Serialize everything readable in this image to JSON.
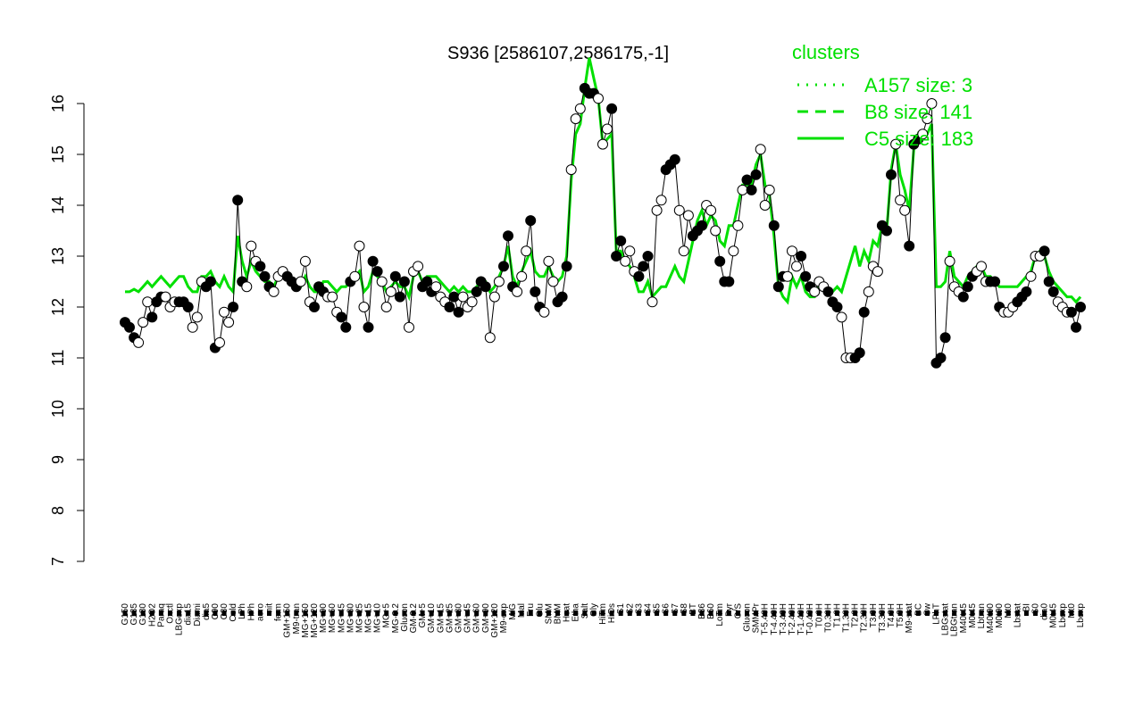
{
  "colors": {
    "green": "#00e000",
    "black": "#000000"
  },
  "chart_data": {
    "type": "line",
    "title": "S936 [2586107,2586175,-1]",
    "xlabel": "",
    "ylabel": "",
    "ylim": [
      7,
      16
    ],
    "yticks": [
      7,
      8,
      9,
      10,
      11,
      12,
      13,
      14,
      15,
      16
    ],
    "grid": false,
    "legend": {
      "title": "clusters",
      "placement": "top-right",
      "entries": [
        {
          "label": "A157 size: 3",
          "style": "dotted"
        },
        {
          "label": "B8 size: 141",
          "style": "dashed"
        },
        {
          "label": "C5 size: 183",
          "style": "solid"
        }
      ]
    },
    "x_tick_labels": [
      "G150",
      "G135",
      "G180",
      "H2O2",
      "Paraq",
      "Oxctl",
      "LBGexp",
      "dia15",
      "Diami",
      "dia5",
      "C90",
      "C30",
      "Cold",
      "LPh",
      "HPh",
      "aero",
      "nit",
      "ferm",
      "GM+150",
      "M9-tran",
      "MG+150",
      "MG+120",
      "MG+90",
      "MG+60",
      "MG+45",
      "MG+30",
      "MG+25",
      "MG+15",
      "MG+10",
      "MG+5",
      "MG-0.2",
      "Glucon",
      "GM-0.2",
      "GM+5",
      "GM+10",
      "GM+15",
      "GM+25",
      "GM+30",
      "GM+45",
      "GM+60",
      "GM+90",
      "GM+120",
      "M9-exp",
      "M/G",
      "Mal",
      "Fru",
      "Glu",
      "SMM",
      "BMM",
      "Heat",
      "Etha",
      "Salt",
      "Gly",
      "HiTm",
      "HiOs",
      "S1",
      "S2",
      "S3",
      "S4",
      "S5",
      "S6",
      "S7",
      "S8",
      "BT",
      "B36",
      "B60",
      "LoTm",
      "Pyr",
      "G/S",
      "Glucon",
      "SMMPr",
      "T-5.40H",
      "T-4.40H",
      "T-3.40H",
      "T-2.40H",
      "T-1.40H",
      "T-0.40H",
      "T0.0H",
      "T0.30H",
      "T1.0H",
      "T1.30H",
      "T2.0H",
      "T2.30H",
      "T3.0H",
      "T3.30H",
      "T4.0H",
      "T5.0H",
      "M9-stat",
      "BC",
      "Sw",
      "LPhT",
      "LBGstat",
      "LBGtran",
      "M40t45",
      "M0t45",
      "Lbtran",
      "M40t90",
      "M0t90",
      "Mt0",
      "Lbstat",
      "BI",
      "S0",
      "dia0",
      "M0t45",
      "Lbexp",
      "Mt0",
      "Lbexp"
    ],
    "series": [
      {
        "marker": "points",
        "values": [
          11.7,
          11.6,
          11.4,
          11.3,
          11.7,
          12.1,
          11.8,
          12.1,
          12.2,
          12.2,
          12.0,
          12.1,
          12.1,
          12.1,
          12.0,
          11.6,
          11.8,
          12.5,
          12.4,
          12.5,
          11.2,
          11.3,
          11.9,
          11.7,
          12.0,
          14.1,
          12.5,
          12.4,
          13.2,
          12.9,
          12.8,
          12.6,
          12.4,
          12.3,
          12.6,
          12.7,
          12.6,
          12.5,
          12.4,
          12.5,
          12.9,
          12.1,
          12.0,
          12.4,
          12.3,
          12.2,
          12.2,
          11.9,
          11.8,
          11.6,
          12.5,
          12.6,
          13.2,
          12.0,
          11.6,
          12.9,
          12.7,
          12.5,
          12.0,
          12.3,
          12.6,
          12.2,
          12.5,
          11.6,
          12.7,
          12.8,
          12.4,
          12.5,
          12.3,
          12.4,
          12.2,
          12.1,
          12.0,
          12.2,
          11.9,
          12.2,
          12.0,
          12.1,
          12.3,
          12.5,
          12.4,
          11.4,
          12.2,
          12.5,
          12.8,
          13.4,
          12.4,
          12.3,
          12.6,
          13.1,
          13.7,
          12.3,
          12.0,
          11.9,
          12.9,
          12.5,
          12.1,
          12.2,
          12.8,
          14.7,
          15.7,
          15.9,
          16.3,
          16.2,
          16.2,
          16.1,
          15.2,
          15.5,
          15.9,
          13.0,
          13.3,
          12.9,
          13.1,
          12.7,
          12.6,
          12.8,
          13.0,
          12.1,
          13.9,
          14.1,
          14.7,
          14.8,
          14.9,
          13.9,
          13.1,
          13.8,
          13.4,
          13.5,
          13.6,
          14.0,
          13.9,
          13.5,
          12.9,
          12.5,
          12.5,
          13.1,
          13.6,
          14.3,
          14.5,
          14.3,
          14.6,
          15.1,
          14.0,
          14.3,
          13.6,
          12.4,
          12.6,
          12.6,
          13.1,
          12.8,
          13.0,
          12.6,
          12.4,
          12.3,
          12.5,
          12.4,
          12.3,
          12.1,
          12.0,
          11.8,
          11.0,
          11.0,
          11.0,
          11.1,
          11.9,
          12.3,
          12.8,
          12.7,
          13.6,
          13.5,
          14.6,
          15.2,
          14.1,
          13.9,
          13.2,
          15.2,
          15.3,
          15.4,
          15.7,
          16.0,
          10.9,
          11.0,
          11.4,
          12.9,
          12.4,
          12.3,
          12.2,
          12.4,
          12.6,
          12.7,
          12.8,
          12.5,
          12.5,
          12.5,
          12.0,
          11.9,
          11.9,
          12.0,
          12.1,
          12.2,
          12.3,
          12.6,
          13.0,
          13.0,
          13.1,
          12.5,
          12.3,
          12.1,
          12.0,
          11.9,
          11.9,
          11.6,
          12.0
        ]
      },
      {
        "marker": "smoothed line",
        "values": [
          12.3,
          12.3,
          12.35,
          12.3,
          12.4,
          12.5,
          12.4,
          12.5,
          12.6,
          12.5,
          12.4,
          12.5,
          12.6,
          12.6,
          12.4,
          12.3,
          12.3,
          12.6,
          12.6,
          12.7,
          12.5,
          12.4,
          12.6,
          12.4,
          12.3,
          13.4,
          12.9,
          12.6,
          12.9,
          12.7,
          12.6,
          12.5,
          12.5,
          12.4,
          12.6,
          12.6,
          12.6,
          12.5,
          12.4,
          12.4,
          12.6,
          12.4,
          12.3,
          12.3,
          12.5,
          12.5,
          12.4,
          12.3,
          12.4,
          12.4,
          12.5,
          12.6,
          12.7,
          12.3,
          12.4,
          12.7,
          12.6,
          12.5,
          12.3,
          12.4,
          12.5,
          12.4,
          12.4,
          12.2,
          12.6,
          12.7,
          12.5,
          12.6,
          12.6,
          12.6,
          12.5,
          12.4,
          12.3,
          12.4,
          12.3,
          12.4,
          12.3,
          12.3,
          12.4,
          12.5,
          12.5,
          12.3,
          12.4,
          12.6,
          12.8,
          13.2,
          12.6,
          12.4,
          12.7,
          12.9,
          13.1,
          12.7,
          12.6,
          12.6,
          12.8,
          12.6,
          12.5,
          12.6,
          13.0,
          14.5,
          15.4,
          15.6,
          16.3,
          16.9,
          16.5,
          16.1,
          15.2,
          15.3,
          15.4,
          13.1,
          13.1,
          12.9,
          12.8,
          12.6,
          12.3,
          12.3,
          12.5,
          12.2,
          12.3,
          12.4,
          12.4,
          12.6,
          12.8,
          12.6,
          12.5,
          12.9,
          13.3,
          13.7,
          13.9,
          13.6,
          13.8,
          13.7,
          13.3,
          13.2,
          13.6,
          13.6,
          14.0,
          14.4,
          14.4,
          14.4,
          14.8,
          15.0,
          14.4,
          14.2,
          13.4,
          12.4,
          12.2,
          12.1,
          12.6,
          12.4,
          12.6,
          12.3,
          12.2,
          12.2,
          12.4,
          12.4,
          12.3,
          12.3,
          12.4,
          12.3,
          12.6,
          12.9,
          13.2,
          12.8,
          13.1,
          12.9,
          13.3,
          13.2,
          13.6,
          13.5,
          14.7,
          15.2,
          14.6,
          14.3,
          13.9,
          15.1,
          15.4,
          15.3,
          15.4,
          15.6,
          12.4,
          12.4,
          12.5,
          13.1,
          12.6,
          12.5,
          12.4,
          12.6,
          12.7,
          12.8,
          12.8,
          12.6,
          12.6,
          12.5,
          12.4,
          12.4,
          12.4,
          12.4,
          12.4,
          12.5,
          12.6,
          12.7,
          13.0,
          13.1,
          13.0,
          12.7,
          12.5,
          12.4,
          12.3,
          12.2,
          12.2,
          12.1,
          12.2
        ]
      }
    ]
  }
}
